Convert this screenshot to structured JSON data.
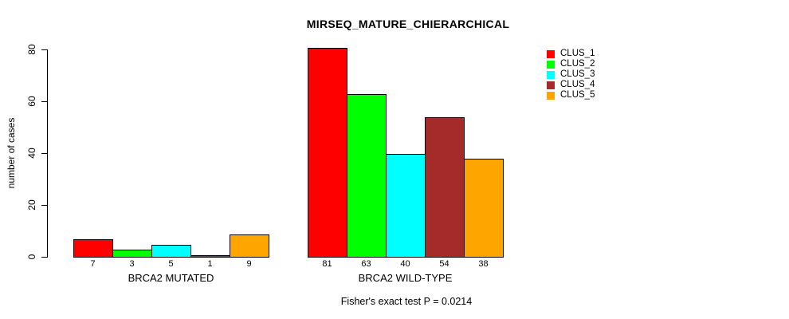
{
  "title": "MIRSEQ_MATURE_CHIERARCHICAL",
  "chart_data": {
    "type": "bar",
    "title": "MIRSEQ_MATURE_CHIERARCHICAL",
    "xlabel": "",
    "ylabel": "number of cases",
    "ylim": [
      0,
      80
    ],
    "yticks": [
      0,
      20,
      40,
      60,
      80
    ],
    "grid": false,
    "legend_position": "top-right",
    "annotation": "Fisher's exact test P = 0.0214",
    "categories": [
      "BRCA2 MUTATED",
      "BRCA2 WILD-TYPE"
    ],
    "series": [
      {
        "name": "CLUS_1",
        "color": "#FF0000",
        "values": [
          7,
          81
        ]
      },
      {
        "name": "CLUS_2",
        "color": "#00FF00",
        "values": [
          3,
          63
        ]
      },
      {
        "name": "CLUS_3",
        "color": "#00FFFF",
        "values": [
          5,
          40
        ]
      },
      {
        "name": "CLUS_4",
        "color": "#A52A2A",
        "values": [
          1,
          54
        ]
      },
      {
        "name": "CLUS_5",
        "color": "#FFA500",
        "values": [
          9,
          38
        ]
      }
    ],
    "bar_value_labels": {
      "BRCA2 MUTATED": [
        7,
        3,
        5,
        1,
        9
      ],
      "BRCA2 WILD-TYPE": [
        81,
        63,
        40,
        54,
        38
      ]
    }
  },
  "axis": {
    "tick_labels": [
      "0",
      "20",
      "40",
      "60",
      "80"
    ]
  },
  "colors": {
    "background": "#FFFFFF",
    "axis": "#000000",
    "text": "#000000"
  }
}
